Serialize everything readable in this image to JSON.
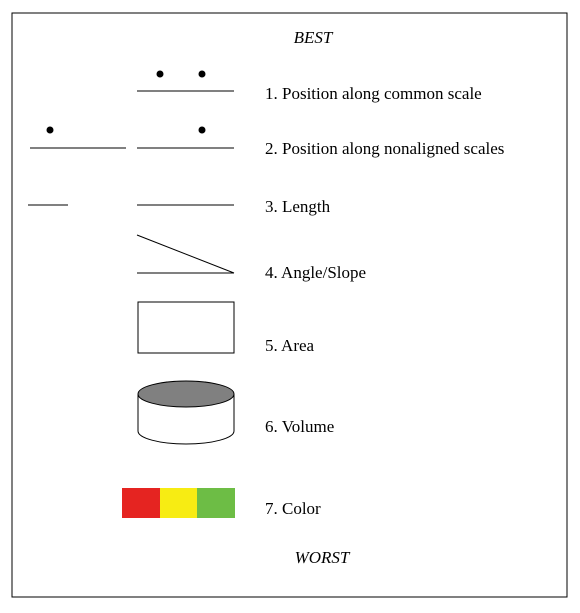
{
  "header": {
    "top": "BEST",
    "bottom": "WORST"
  },
  "items": [
    {
      "label": "1. Position along common scale"
    },
    {
      "label": "2. Position along nonaligned scales"
    },
    {
      "label": "3. Length"
    },
    {
      "label": "4. Angle/Slope"
    },
    {
      "label": "5. Area"
    },
    {
      "label": "6. Volume"
    },
    {
      "label": "7. Color"
    }
  ]
}
